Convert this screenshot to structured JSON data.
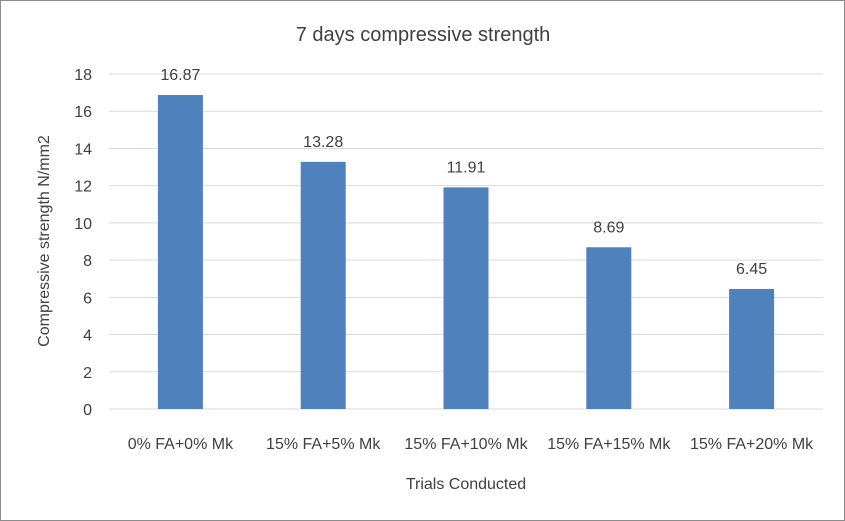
{
  "chart_data": {
    "type": "bar",
    "title": "7 days compressive strength",
    "xlabel": "Trials Conducted",
    "ylabel": "Compressive strength N/mm2",
    "categories": [
      "0% FA+0% Mk",
      "15% FA+5% Mk",
      "15% FA+10% Mk",
      "15% FA+15% Mk",
      "15% FA+20% Mk"
    ],
    "values": [
      16.87,
      13.28,
      11.91,
      8.69,
      6.45
    ],
    "data_labels": [
      "16.87",
      "13.28",
      "11.91",
      "8.69",
      "6.45"
    ],
    "ylim": [
      0,
      18
    ],
    "yticks": [
      0,
      2,
      4,
      6,
      8,
      10,
      12,
      14,
      16,
      18
    ],
    "ytick_labels": [
      "0",
      "2",
      "4",
      "6",
      "8",
      "10",
      "12",
      "14",
      "16",
      "18"
    ],
    "grid": true,
    "legend": "none",
    "bar_color": "#4f81bd"
  }
}
